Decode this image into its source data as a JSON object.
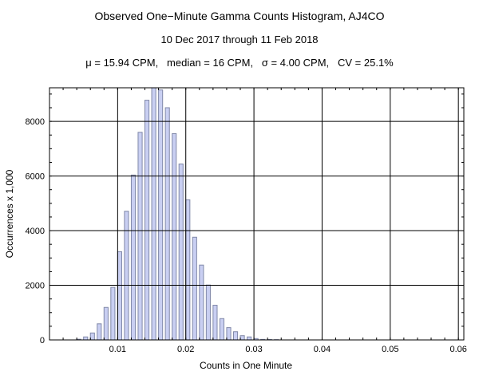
{
  "chart_data": {
    "type": "bar",
    "title": "Observed One−Minute Gamma Counts Histogram, AJ4CO",
    "subtitle": "10 Dec 2017 through 11 Feb 2018",
    "stats_line": "μ = 15.94 CPM,   median = 16 CPM,   σ = 4.00 CPM,   CV = 25.1%",
    "xlabel": "Counts in One Minute",
    "ylabel": "Occurrences x 1,000",
    "xlim": [
      0,
      0.0608
    ],
    "ylim": [
      0,
      9230
    ],
    "bin_width": 0.001,
    "x_ticks": [
      "0.01",
      "0.02",
      "0.03",
      "0.04",
      "0.05",
      "0.06"
    ],
    "y_ticks": [
      "0",
      "2000",
      "4000",
      "6000",
      "8000"
    ],
    "grid": true,
    "bar_color": "#c9cff2",
    "bar_edge_color": "#8088a8",
    "bins": [
      0.004,
      0.005,
      0.006,
      0.007,
      0.008,
      0.009,
      0.01,
      0.011,
      0.012,
      0.013,
      0.014,
      0.015,
      0.016,
      0.017,
      0.018,
      0.019,
      0.02,
      0.021,
      0.022,
      0.023,
      0.024,
      0.025,
      0.026,
      0.027,
      0.028,
      0.029,
      0.03,
      0.031,
      0.032,
      0.033
    ],
    "values": [
      25,
      110,
      255,
      590,
      1190,
      1925,
      3230,
      4710,
      6035,
      7600,
      8775,
      9400,
      9150,
      8500,
      7550,
      6440,
      5130,
      3760,
      2740,
      2010,
      1270,
      780,
      450,
      300,
      155,
      110,
      50,
      20,
      15,
      10
    ]
  }
}
